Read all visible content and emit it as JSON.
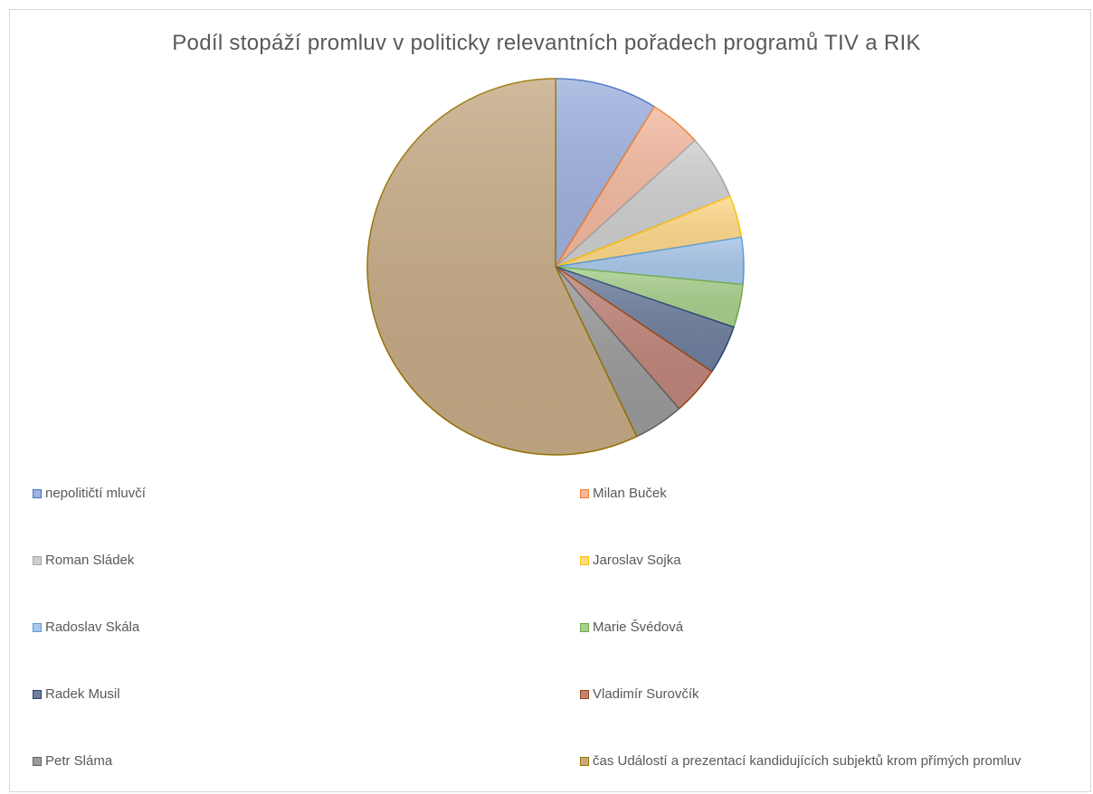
{
  "chart_data": {
    "type": "pie",
    "title": "Podíl stopáží promluv v politicky relevantních pořadech programů TIV a RIK",
    "start_angle_deg": 0,
    "direction": "clockwise",
    "legend_position": "bottom",
    "slices": [
      {
        "label": "nepolitičtí mluvčí",
        "value": 8.8,
        "fill": "#a0b2df",
        "stroke": "#4472c4"
      },
      {
        "label": "Milan Buček",
        "value": 4.5,
        "fill": "#f4b9a0",
        "stroke": "#ed7d31"
      },
      {
        "label": "Roman Sládek",
        "value": 5.6,
        "fill": "#cfcfcf",
        "stroke": "#a5a5a5"
      },
      {
        "label": "Jaroslav Sojka",
        "value": 3.6,
        "fill": "#ffd98a",
        "stroke": "#ffc000"
      },
      {
        "label": "Radoslav Skála",
        "value": 4.0,
        "fill": "#a9c8ea",
        "stroke": "#5b9bd5"
      },
      {
        "label": "Marie Švédová",
        "value": 3.7,
        "fill": "#a8d08d",
        "stroke": "#70ad47"
      },
      {
        "label": "Radek Musil",
        "value": 4.2,
        "fill": "#6f7f9e",
        "stroke": "#264478"
      },
      {
        "label": "Vladimír Surovčík",
        "value": 4.2,
        "fill": "#c0857a",
        "stroke": "#9e480e"
      },
      {
        "label": "Petr Sláma",
        "value": 4.3,
        "fill": "#9b9b9b",
        "stroke": "#636363"
      },
      {
        "label": "čas Událostí a prezentací kandidujících subjektů krom přímých promluv",
        "value": 57.1,
        "fill": "#c6ab86",
        "stroke": "#997300"
      }
    ]
  }
}
